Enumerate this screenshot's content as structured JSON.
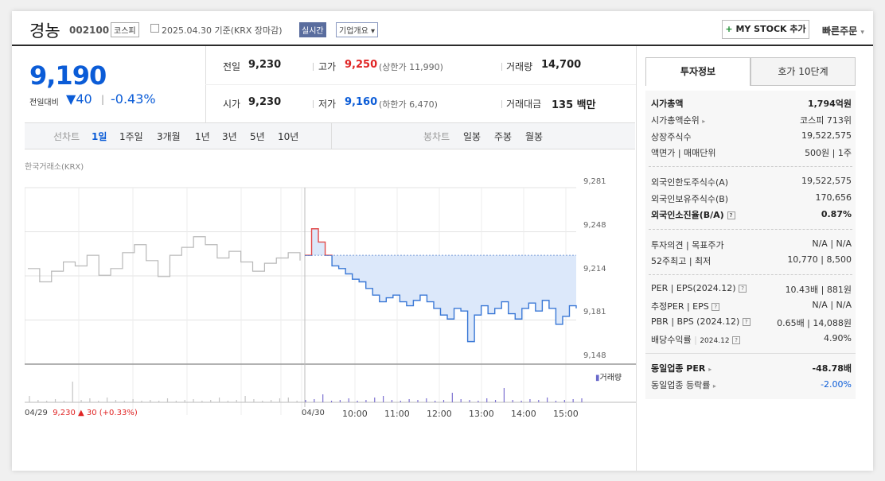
{
  "header": {
    "name": "경농",
    "code": "002100",
    "market": "코스피",
    "date": "2025.04.30  기준(KRX 장마감)",
    "realtime": "실시간",
    "overview": "기업개요 ▾",
    "mystock": "MY STOCK 추가",
    "quick": "빠른주문"
  },
  "price": {
    "current": "9,190",
    "change_label": "전일대비",
    "change": "40",
    "change_pct": "-0.43%"
  },
  "stats": {
    "prev_label": "전일",
    "prev": "9,230",
    "high_label": "고가",
    "high": "9,250",
    "upper_limit": "(상한가 11,990)",
    "volume_label": "거래량",
    "volume": "14,700",
    "open_label": "시가",
    "open": "9,230",
    "low_label": "저가",
    "low": "9,160",
    "lower_limit": "(하한가 6,470)",
    "amount_label": "거래대금",
    "amount": "135 백만"
  },
  "periods": {
    "label": "선차트",
    "items": [
      "1일",
      "1주일",
      "3개월",
      "1년",
      "3년",
      "5년",
      "10년"
    ],
    "candle_label": "봉차트",
    "candles": [
      "일봉",
      "주봉",
      "월봉"
    ]
  },
  "chart_source": "한국거래소(KRX)",
  "chart_data": {
    "type": "line",
    "ylim": [
      9148,
      9281
    ],
    "yticks": [
      "9,281",
      "9,248",
      "9,214",
      "9,181",
      "9,148"
    ],
    "xticks": [
      "04/29",
      "04/30",
      "10:00",
      "11:00",
      "12:00",
      "13:00",
      "14:00",
      "15:00"
    ],
    "prev_day_summary": "9,230 ▲ 30 (+0.33%)",
    "volume_label": "거래량",
    "reference_price": 9230,
    "series": [
      {
        "values": [
          9220,
          9210,
          9218,
          9225,
          9222,
          9230,
          9215,
          9220,
          9232,
          9238,
          9226,
          9214,
          9230,
          9236,
          9244,
          9238,
          9228,
          9233,
          9225,
          9218,
          9224,
          9228,
          9232,
          9226
        ]
      },
      {
        "values": [
          9230,
          9250,
          9240,
          9230,
          9222,
          9220,
          9216,
          9212,
          9210,
          9205,
          9200,
          9195,
          9198,
          9200,
          9195,
          9192,
          9196,
          9200,
          9195,
          9190,
          9185,
          9182,
          9190,
          9188,
          9165,
          9185,
          9192,
          9186,
          9190,
          9195,
          9186,
          9182,
          9190,
          9194,
          9188,
          9196,
          9190,
          9178,
          9184,
          9192,
          9190
        ]
      }
    ]
  },
  "tabs": [
    "투자정보",
    "호가 10단계"
  ],
  "invest": {
    "cap_label": "시가총액",
    "cap": "1,794억원",
    "rank_label": "시가총액순위",
    "rank": "코스피 713위",
    "shares_label": "상장주식수",
    "shares": "19,522,575",
    "face_label": "액면가 | 매매단위",
    "face": "500원 | 1주",
    "foreign_limit_label": "외국인한도주식수(A)",
    "foreign_limit": "19,522,575",
    "foreign_hold_label": "외국인보유주식수(B)",
    "foreign_hold": "170,656",
    "foreign_ratio_label": "외국인소진율(B/A)",
    "foreign_ratio": "0.87%",
    "opinion_label": "투자의견 | 목표주가",
    "opinion": "N/A | N/A",
    "week52_label": "52주최고 | 최저",
    "week52": "10,770 | 8,500",
    "per_label": "PER | EPS(2024.12)",
    "per": "10.43배 | 881원",
    "est_label": "추정PER | EPS",
    "est": "N/A | N/A",
    "pbr_label": "PBR | BPS (2024.12)",
    "pbr": "0.65배 | 14,088원",
    "div_label": "배당수익률",
    "div_year": "2024.12",
    "div": "4.90%",
    "sector_per_label": "동일업종 PER",
    "sector_per": "-48.78배",
    "sector_chg_label": "동일업종 등락률",
    "sector_chg": "-2.00%"
  }
}
